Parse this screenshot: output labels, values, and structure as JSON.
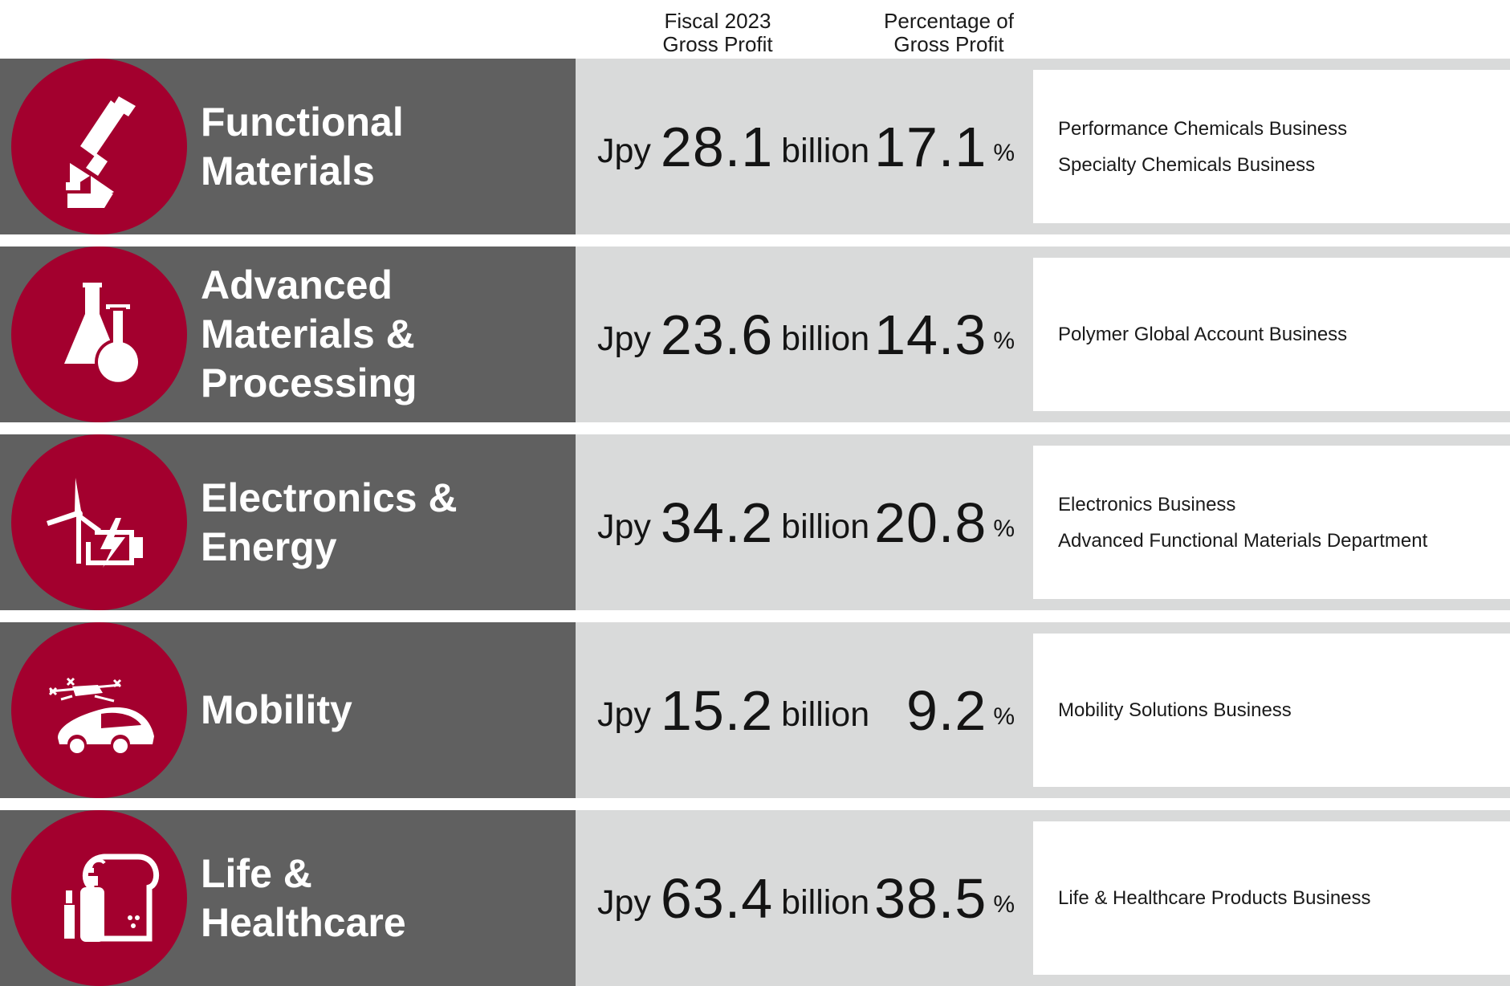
{
  "header": {
    "fiscal_line1": "Fiscal 2023",
    "fiscal_line2": "Gross Profit",
    "percent_line1": "Percentage of",
    "percent_line2": "Gross Profit"
  },
  "common": {
    "currency": "Jpy",
    "scale": "billion",
    "percent_sign": "%"
  },
  "segments": [
    {
      "name_lines": [
        "Functional",
        "Materials"
      ],
      "icon": "microscope-icon",
      "gross_profit": "28.1",
      "percentage": "17.1",
      "businesses": [
        "Performance Chemicals Business",
        "Specialty Chemicals Business"
      ]
    },
    {
      "name_lines": [
        "Advanced",
        "Materials &",
        "Processing"
      ],
      "icon": "flask-icon",
      "gross_profit": "23.6",
      "percentage": "14.3",
      "businesses": [
        "Polymer Global Account Business"
      ]
    },
    {
      "name_lines": [
        "Electronics &",
        "Energy"
      ],
      "icon": "wind-turbine-battery-icon",
      "gross_profit": "34.2",
      "percentage": "20.8",
      "businesses": [
        "Electronics Business",
        "Advanced Functional Materials Department"
      ]
    },
    {
      "name_lines": [
        "Mobility"
      ],
      "icon": "drone-car-icon",
      "gross_profit": "15.2",
      "percentage": "9.2",
      "businesses": [
        "Mobility Solutions Business"
      ]
    },
    {
      "name_lines": [
        "Life &",
        "Healthcare"
      ],
      "icon": "household-products-icon",
      "gross_profit": "63.4",
      "percentage": "38.5",
      "businesses": [
        "Life & Healthcare Products Business"
      ]
    }
  ],
  "colors": {
    "accent": "#a3002e",
    "name_band": "#606060",
    "value_band": "#d9dada",
    "text": "#141414"
  }
}
